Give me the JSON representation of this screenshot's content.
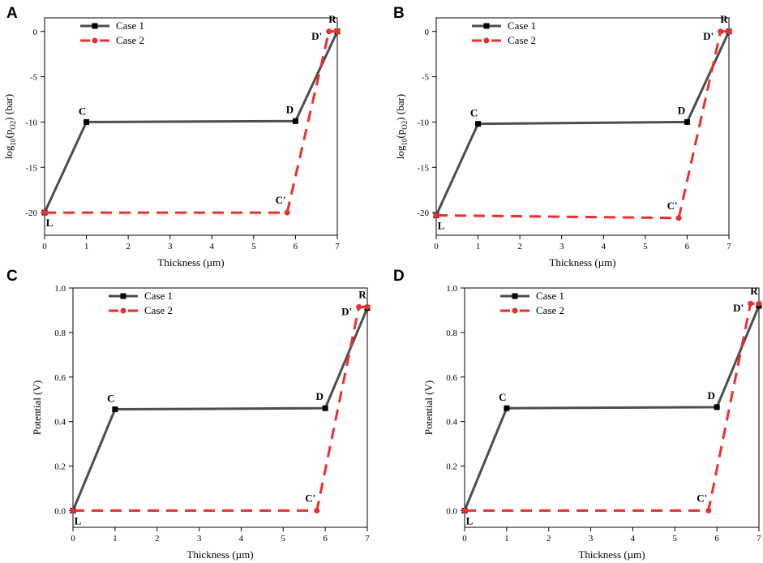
{
  "chart_data": [
    {
      "type": "line",
      "panel": "A",
      "xlabel": "Thickness (µm)",
      "ylabel": "log10(pO2) (bar)",
      "ylabel_main": "log",
      "ylabel_sub1": "10",
      "ylabel_mid": "(p",
      "ylabel_sub2": "O2",
      "ylabel_end": ") (bar)",
      "xlim": [
        0,
        7
      ],
      "ylim": [
        -22.5,
        1.5
      ],
      "xticks": [
        0,
        1,
        2,
        3,
        4,
        5,
        6,
        7
      ],
      "xtick_labels": [
        "0",
        "1",
        "2",
        "3",
        "4",
        "5",
        "6",
        "7"
      ],
      "yticks": [
        0,
        -5,
        -10,
        -15,
        -20
      ],
      "ytick_labels": [
        "0",
        "-5",
        "-10",
        "-15",
        "-20"
      ],
      "legend": [
        "Case 1",
        "Case 2"
      ],
      "series": [
        {
          "name": "Case 1",
          "color": "#4d4d4d",
          "x": [
            0,
            1,
            6,
            7
          ],
          "y": [
            -20,
            -10,
            -9.9,
            0
          ]
        },
        {
          "name": "Case 2",
          "color": "#ee2e2e",
          "x": [
            0,
            5.8,
            6.8,
            7
          ],
          "y": [
            -20,
            -20,
            0,
            0
          ]
        }
      ],
      "point_labels": [
        {
          "text": "L",
          "x": 0,
          "y": -20
        },
        {
          "text": "C",
          "x": 1,
          "y": -10
        },
        {
          "text": "D",
          "x": 6,
          "y": -9.9
        },
        {
          "text": "C'",
          "x": 5.8,
          "y": -20
        },
        {
          "text": "D'",
          "x": 6.8,
          "y": 0
        },
        {
          "text": "R",
          "x": 7,
          "y": 0
        }
      ]
    },
    {
      "type": "line",
      "panel": "B",
      "xlabel": "Thickness (µm)",
      "ylabel": "log10(pO2) (bar)",
      "ylabel_main": "log",
      "ylabel_sub1": "10",
      "ylabel_mid": "(p",
      "ylabel_sub2": "O2",
      "ylabel_end": ") (bar)",
      "xlim": [
        0,
        7
      ],
      "ylim": [
        -22.5,
        1.5
      ],
      "xticks": [
        0,
        1,
        2,
        3,
        4,
        5,
        6,
        7
      ],
      "xtick_labels": [
        "0",
        "1",
        "2",
        "3",
        "4",
        "5",
        "6",
        "7"
      ],
      "yticks": [
        0,
        -5,
        -10,
        -15,
        -20
      ],
      "ytick_labels": [
        "0",
        "-5",
        "-10",
        "-15",
        "-20"
      ],
      "legend": [
        "Case 1",
        "Case 2"
      ],
      "series": [
        {
          "name": "Case 1",
          "color": "#4d4d4d",
          "x": [
            0,
            1,
            6,
            7
          ],
          "y": [
            -20.3,
            -10.2,
            -10,
            0
          ]
        },
        {
          "name": "Case 2",
          "color": "#ee2e2e",
          "x": [
            0,
            5.8,
            6.8,
            7
          ],
          "y": [
            -20.3,
            -20.6,
            0,
            0
          ]
        }
      ],
      "point_labels": [
        {
          "text": "L",
          "x": 0,
          "y": -20.3
        },
        {
          "text": "C",
          "x": 1,
          "y": -10.2
        },
        {
          "text": "D",
          "x": 6,
          "y": -10
        },
        {
          "text": "C'",
          "x": 5.8,
          "y": -20.6
        },
        {
          "text": "D'",
          "x": 6.8,
          "y": 0
        },
        {
          "text": "R",
          "x": 7,
          "y": 0
        }
      ]
    },
    {
      "type": "line",
      "panel": "C",
      "xlabel": "Thickness (µm)",
      "ylabel": "Potential (V)",
      "xlim": [
        0,
        7
      ],
      "ylim": [
        -0.075,
        1.0
      ],
      "xticks": [
        0,
        1,
        2,
        3,
        4,
        5,
        6,
        7
      ],
      "xtick_labels": [
        "0",
        "1",
        "2",
        "3",
        "4",
        "5",
        "6",
        "7"
      ],
      "yticks": [
        0,
        0.2,
        0.4,
        0.6,
        0.8,
        1.0
      ],
      "ytick_labels": [
        "0.0",
        "0.2",
        "0.4",
        "0.6",
        "0.8",
        "1.0"
      ],
      "legend": [
        "Case 1",
        "Case 2"
      ],
      "series": [
        {
          "name": "Case 1",
          "color": "#4d4d4d",
          "x": [
            0,
            1,
            6,
            7
          ],
          "y": [
            0,
            0.455,
            0.46,
            0.91
          ]
        },
        {
          "name": "Case 2",
          "color": "#ee2e2e",
          "x": [
            0,
            5.8,
            6.8,
            7
          ],
          "y": [
            0,
            0,
            0.915,
            0.915
          ]
        }
      ],
      "point_labels": [
        {
          "text": "L",
          "x": 0,
          "y": 0
        },
        {
          "text": "C",
          "x": 1,
          "y": 0.455
        },
        {
          "text": "D",
          "x": 6,
          "y": 0.46
        },
        {
          "text": "C'",
          "x": 5.8,
          "y": 0
        },
        {
          "text": "D'",
          "x": 6.8,
          "y": 0.915
        },
        {
          "text": "R",
          "x": 7,
          "y": 0.915
        }
      ]
    },
    {
      "type": "line",
      "panel": "D",
      "xlabel": "Thickness (µm)",
      "ylabel": "Potential (V)",
      "xlim": [
        0,
        7
      ],
      "ylim": [
        -0.075,
        1.0
      ],
      "xticks": [
        0,
        1,
        2,
        3,
        4,
        5,
        6,
        7
      ],
      "xtick_labels": [
        "0",
        "1",
        "2",
        "3",
        "4",
        "5",
        "6",
        "7"
      ],
      "yticks": [
        0,
        0.2,
        0.4,
        0.6,
        0.8,
        1.0
      ],
      "ytick_labels": [
        "0.0",
        "0.2",
        "0.4",
        "0.6",
        "0.8",
        "1.0"
      ],
      "legend": [
        "Case 1",
        "Case 2"
      ],
      "series": [
        {
          "name": "Case 1",
          "color": "#4d4d4d",
          "x": [
            0,
            1,
            6,
            7
          ],
          "y": [
            0,
            0.46,
            0.465,
            0.92
          ]
        },
        {
          "name": "Case 2",
          "color": "#ee2e2e",
          "x": [
            0,
            5.8,
            6.8,
            7
          ],
          "y": [
            0,
            0,
            0.93,
            0.93
          ]
        }
      ],
      "point_labels": [
        {
          "text": "L",
          "x": 0,
          "y": 0
        },
        {
          "text": "C",
          "x": 1,
          "y": 0.46
        },
        {
          "text": "D",
          "x": 6,
          "y": 0.465
        },
        {
          "text": "C'",
          "x": 5.8,
          "y": 0
        },
        {
          "text": "D'",
          "x": 6.8,
          "y": 0.93
        },
        {
          "text": "R",
          "x": 7,
          "y": 0.93
        }
      ]
    }
  ]
}
